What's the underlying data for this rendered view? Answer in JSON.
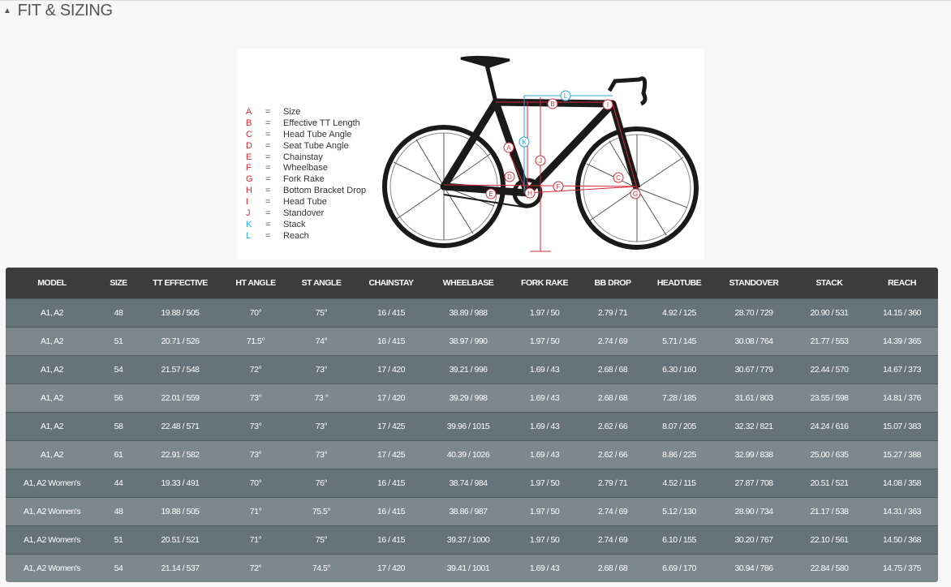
{
  "header": {
    "title": "FIT & SIZING"
  },
  "diagram": {
    "legend": [
      {
        "letter": "A",
        "eq": "=",
        "label": "Size"
      },
      {
        "letter": "B",
        "eq": "=",
        "label": "Effective TT Length"
      },
      {
        "letter": "C",
        "eq": "=",
        "label": "Head Tube Angle"
      },
      {
        "letter": "D",
        "eq": "=",
        "label": "Seat Tube Angle"
      },
      {
        "letter": "E",
        "eq": "=",
        "label": "Chainstay"
      },
      {
        "letter": "F",
        "eq": "=",
        "label": "Wheelbase"
      },
      {
        "letter": "G",
        "eq": "=",
        "label": "Fork Rake"
      },
      {
        "letter": "H",
        "eq": "=",
        "label": "Bottom Bracket Drop"
      },
      {
        "letter": "I",
        "eq": "=",
        "label": "Head Tube"
      },
      {
        "letter": "J",
        "eq": "=",
        "label": "Standover"
      },
      {
        "letter": "K",
        "eq": "=",
        "label": "Stack"
      },
      {
        "letter": "L",
        "eq": "=",
        "label": "Reach"
      }
    ],
    "markers": [
      "A",
      "B",
      "C",
      "D",
      "E",
      "F",
      "G",
      "H",
      "I",
      "J",
      "K",
      "L"
    ]
  },
  "table": {
    "columns": [
      "MODEL",
      "SIZE",
      "TT EFFECTIVE",
      "HT ANGLE",
      "ST ANGLE",
      "CHAINSTAY",
      "WHEELBASE",
      "FORK RAKE",
      "BB DROP",
      "HEADTUBE",
      "STANDOVER",
      "STACK",
      "REACH"
    ],
    "rows": [
      [
        "A1, A2",
        "48",
        "19.88 / 505",
        "70°",
        "75°",
        "16 / 415",
        "38.89 / 988",
        "1.97 / 50",
        "2.79 / 71",
        "4.92 / 125",
        "28.70 / 729",
        "20.90 / 531",
        "14.15 / 360"
      ],
      [
        "A1, A2",
        "51",
        "20.71 / 526",
        "71.5°",
        "74°",
        "16 / 415",
        "38.97 / 990",
        "1.97 / 50",
        "2.74 / 69",
        "5.71 / 145",
        "30.08 / 764",
        "21.77 / 553",
        "14.39 / 365"
      ],
      [
        "A1, A2",
        "54",
        "21.57 / 548",
        "72°",
        "73°",
        "17 / 420",
        "39.21 / 996",
        "1.69 / 43",
        "2.68 / 68",
        "6.30 / 160",
        "30.67 / 779",
        "22.44 / 570",
        "14.67 / 373"
      ],
      [
        "A1, A2",
        "56",
        "22.01 / 559",
        "73°",
        "73 °",
        "17 / 420",
        "39.29 / 998",
        "1.69 / 43",
        "2.68 / 68",
        "7.28 / 185",
        "31.61 / 803",
        "23.55 / 598",
        "14.81 / 376"
      ],
      [
        "A1, A2",
        "58",
        "22.48 / 571",
        "73°",
        "73°",
        "17 / 425",
        "39.96 / 1015",
        "1.69 / 43",
        "2.62 / 66",
        "8.07 / 205",
        "32.32 / 821",
        "24.24 / 616",
        "15.07 / 383"
      ],
      [
        "A1, A2",
        "61",
        "22.91 / 582",
        "73°",
        "73°",
        "17 / 425",
        "40.39 / 1026",
        "1.69 / 43",
        "2.62 / 66",
        "8.86 / 225",
        "32.99 / 838",
        "25.00 / 635",
        "15.27 / 388"
      ],
      [
        "A1, A2 Women's",
        "44",
        "19.33 / 491",
        "70°",
        "76°",
        "16 / 415",
        "38.74 / 984",
        "1.97 / 50",
        "2.79 / 71",
        "4.52 / 115",
        "27.87 / 708",
        "20.51 / 521",
        "14.08 / 358"
      ],
      [
        "A1, A2 Women's",
        "48",
        "19.88 / 505",
        "71°",
        "75.5°",
        "16 / 415",
        "38.86 / 987",
        "1.97 / 50",
        "2.74 / 69",
        "5.12 / 130",
        "28.90 / 734",
        "21.17 / 538",
        "14.31 / 363"
      ],
      [
        "A1, A2 Women's",
        "51",
        "20.51 / 521",
        "71°",
        "75°",
        "16 / 415",
        "39.37 / 1000",
        "1.97 / 50",
        "2.74 / 69",
        "6.10 / 155",
        "30.20 / 767",
        "22.10 / 561",
        "14.50 / 368"
      ],
      [
        "A1, A2 Women's",
        "54",
        "21.14 / 537",
        "72°",
        "74.5°",
        "17 / 420",
        "39.41 / 1001",
        "1.69 / 43",
        "2.68 / 68",
        "6.69 / 170",
        "30.94 / 786",
        "22.84 / 580",
        "14.75 / 375"
      ]
    ]
  }
}
